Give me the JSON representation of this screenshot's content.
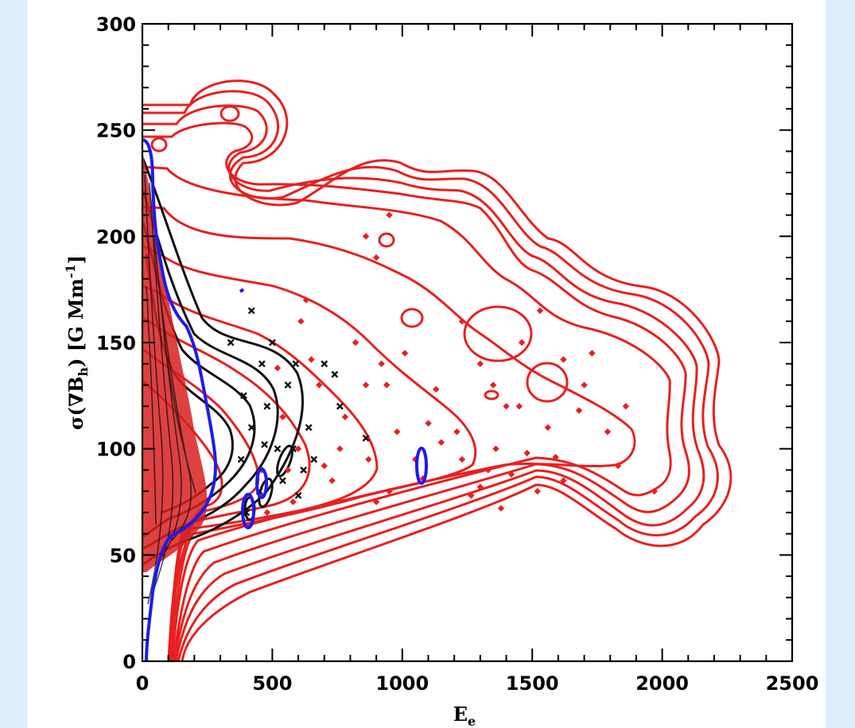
{
  "chart_data": {
    "type": "scatter",
    "title": "",
    "xlabel": "E",
    "xlabel_sub": "e",
    "ylabel": "σ(∇B",
    "ylabel_sub": "h",
    "ylabel_tail": ") [G Mm",
    "ylabel_sup": "-1",
    "ylabel_close": "]",
    "xlim": [
      0,
      2500
    ],
    "ylim": [
      0,
      300
    ],
    "x_ticks": [
      0,
      500,
      1000,
      1500,
      2000,
      2500
    ],
    "x_tick_labels": [
      "0",
      "500",
      "1000",
      "1500",
      "2000",
      "2500"
    ],
    "y_ticks": [
      0,
      50,
      100,
      150,
      200,
      250,
      300
    ],
    "y_tick_labels": [
      "0",
      "50",
      "100",
      "150",
      "200",
      "250",
      "300"
    ],
    "grid": false,
    "colors": {
      "red": "#e8201f",
      "black": "#111111",
      "blue": "#1b1bf0",
      "background": "#deeffb"
    },
    "series": [
      {
        "marker": "diamond",
        "color": "#e8201f",
        "points": [
          [
            1050,
            95
          ],
          [
            1080,
            86
          ],
          [
            1150,
            103
          ],
          [
            1210,
            108
          ],
          [
            1230,
            95
          ],
          [
            1265,
            78
          ],
          [
            1300,
            82
          ],
          [
            1330,
            90
          ],
          [
            1360,
            100
          ],
          [
            1380,
            72
          ],
          [
            1420,
            88
          ],
          [
            1450,
            120
          ],
          [
            1480,
            98
          ],
          [
            1520,
            80
          ],
          [
            1560,
            110
          ],
          [
            1590,
            96
          ],
          [
            1620,
            85
          ],
          [
            1680,
            118
          ],
          [
            1730,
            145
          ],
          [
            1790,
            108
          ],
          [
            1830,
            92
          ],
          [
            1860,
            120
          ],
          [
            1970,
            80
          ],
          [
            1230,
            160
          ],
          [
            1300,
            140
          ],
          [
            1350,
            130
          ],
          [
            1400,
            120
          ],
          [
            1460,
            150
          ],
          [
            1530,
            165
          ],
          [
            1620,
            142
          ],
          [
            1700,
            130
          ],
          [
            1100,
            112
          ],
          [
            1130,
            128
          ],
          [
            980,
            108
          ],
          [
            950,
            80
          ],
          [
            900,
            75
          ],
          [
            870,
            95
          ],
          [
            920,
            140
          ],
          [
            860,
            130
          ],
          [
            820,
            150
          ],
          [
            780,
            115
          ],
          [
            760,
            100
          ],
          [
            730,
            85
          ],
          [
            700,
            92
          ],
          [
            680,
            130
          ],
          [
            650,
            142
          ],
          [
            630,
            170
          ],
          [
            610,
            160
          ],
          [
            600,
            100
          ],
          [
            580,
            75
          ],
          [
            560,
            90
          ],
          [
            540,
            115
          ],
          [
            520,
            138
          ],
          [
            480,
            70
          ],
          [
            460,
            90
          ],
          [
            950,
            210
          ],
          [
            900,
            190
          ],
          [
            860,
            200
          ],
          [
            940,
            130
          ],
          [
            1010,
            145
          ]
        ]
      },
      {
        "marker": "x",
        "color": "#111111",
        "points": [
          [
            340,
            150
          ],
          [
            390,
            125
          ],
          [
            420,
            110
          ],
          [
            460,
            140
          ],
          [
            480,
            120
          ],
          [
            540,
            85
          ],
          [
            580,
            100
          ],
          [
            620,
            90
          ],
          [
            700,
            140
          ],
          [
            760,
            120
          ],
          [
            860,
            105
          ],
          [
            520,
            100
          ],
          [
            450,
            80
          ],
          [
            400,
            70
          ],
          [
            380,
            95
          ],
          [
            560,
            130
          ],
          [
            420,
            165
          ],
          [
            640,
            110
          ],
          [
            660,
            95
          ],
          [
            600,
            78
          ],
          [
            500,
            150
          ],
          [
            470,
            102
          ],
          [
            590,
            140
          ],
          [
            740,
            135
          ]
        ]
      }
    ]
  }
}
